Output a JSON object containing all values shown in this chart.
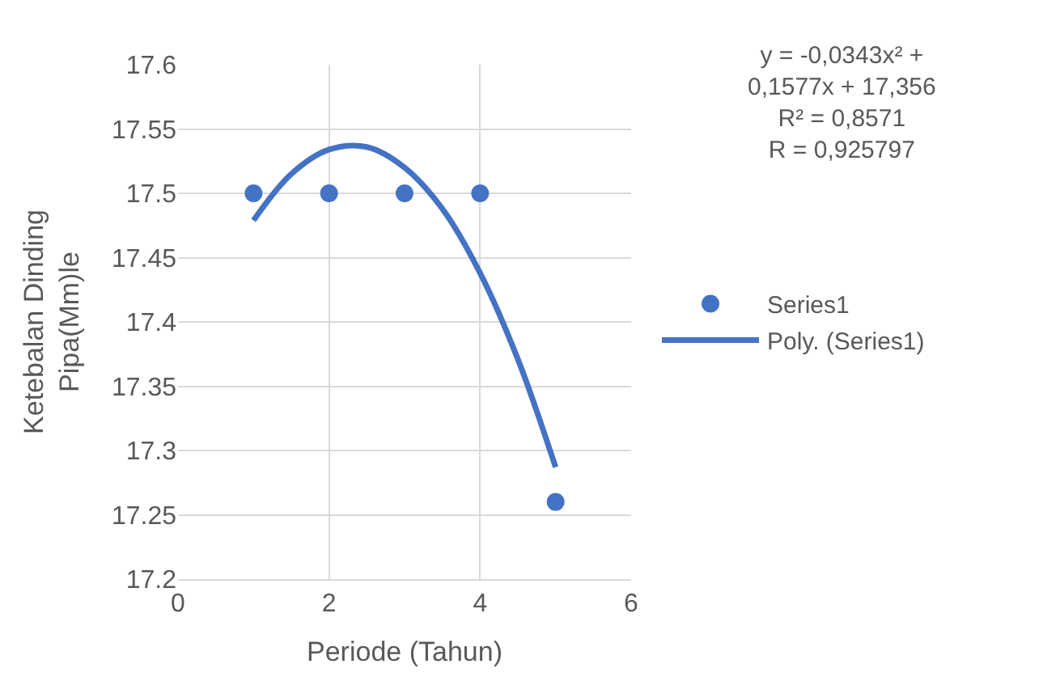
{
  "chart_data": {
    "type": "scatter",
    "xlabel": "Periode (Tahun)",
    "ylabel": "Ketebalan Dinding\nPipa(Mm)le",
    "x": [
      1,
      2,
      3,
      4,
      5
    ],
    "series": [
      {
        "name": "Series1",
        "color": "#4472c4",
        "marker": "circle",
        "values": [
          17.5,
          17.5,
          17.5,
          17.5,
          17.26
        ]
      },
      {
        "name": "Poly. (Series1)",
        "color": "#4472c4",
        "type": "line",
        "line_style": "solid",
        "x": [
          1,
          1.5,
          2,
          2.5,
          3,
          3.5,
          4,
          4.5,
          5
        ],
        "values": [
          17.479,
          17.515,
          17.534,
          17.536,
          17.52,
          17.488,
          17.438,
          17.371,
          17.287
        ]
      }
    ],
    "xlim": [
      0,
      6
    ],
    "xticks": [
      0,
      2,
      4,
      6
    ],
    "ylim": [
      17.2,
      17.6
    ],
    "yticks": [
      17.2,
      17.25,
      17.3,
      17.35,
      17.4,
      17.45,
      17.5,
      17.55,
      17.6
    ],
    "grid": true,
    "legend": "right",
    "annotations": [
      "y = -0,0343x² +\n0,1577x + 17,356\nR² = 0,8571\nR = 0,925797"
    ]
  }
}
